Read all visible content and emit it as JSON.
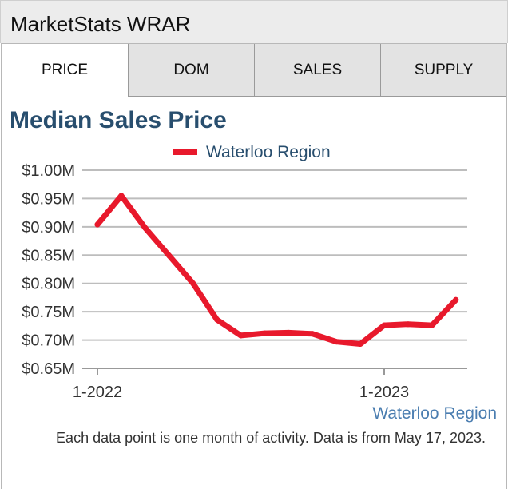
{
  "header": {
    "title": "MarketStats WRAR"
  },
  "tabs": [
    {
      "label": "PRICE",
      "active": true
    },
    {
      "label": "DOM",
      "active": false
    },
    {
      "label": "SALES",
      "active": false
    },
    {
      "label": "SUPPLY",
      "active": false
    }
  ],
  "colors": {
    "series": "#e8192c",
    "title": "#284e6e",
    "link": "#4a7db0",
    "grid": "#bdbdbd"
  },
  "chart_data": {
    "type": "line",
    "title": "Median Sales Price",
    "y_tick_labels": [
      "$0.65M",
      "$0.70M",
      "$0.75M",
      "$0.80M",
      "$0.85M",
      "$0.90M",
      "$0.95M",
      "$1.00M"
    ],
    "y_ticks": [
      0.65,
      0.7,
      0.75,
      0.8,
      0.85,
      0.9,
      0.95,
      1.0
    ],
    "ylim": [
      0.65,
      1.0
    ],
    "x_tick_labels": [
      "1-2022",
      "1-2023"
    ],
    "x_ticks": [
      "2022-01",
      "2023-01"
    ],
    "grid": true,
    "legend": "top-center",
    "series": [
      {
        "name": "Waterloo Region",
        "x": [
          "2022-01",
          "2022-02",
          "2022-03",
          "2022-04",
          "2022-05",
          "2022-06",
          "2022-07",
          "2022-08",
          "2022-09",
          "2022-10",
          "2022-11",
          "2022-12",
          "2023-01",
          "2023-02",
          "2023-03",
          "2023-04"
        ],
        "values": [
          0.904,
          0.955,
          0.898,
          0.849,
          0.8,
          0.736,
          0.708,
          0.712,
          0.713,
          0.711,
          0.697,
          0.693,
          0.726,
          0.728,
          0.726,
          0.771
        ]
      }
    ]
  },
  "region_link": "Waterloo Region",
  "footnote": "Each data point is one month of activity. Data is from May 17, 2023."
}
